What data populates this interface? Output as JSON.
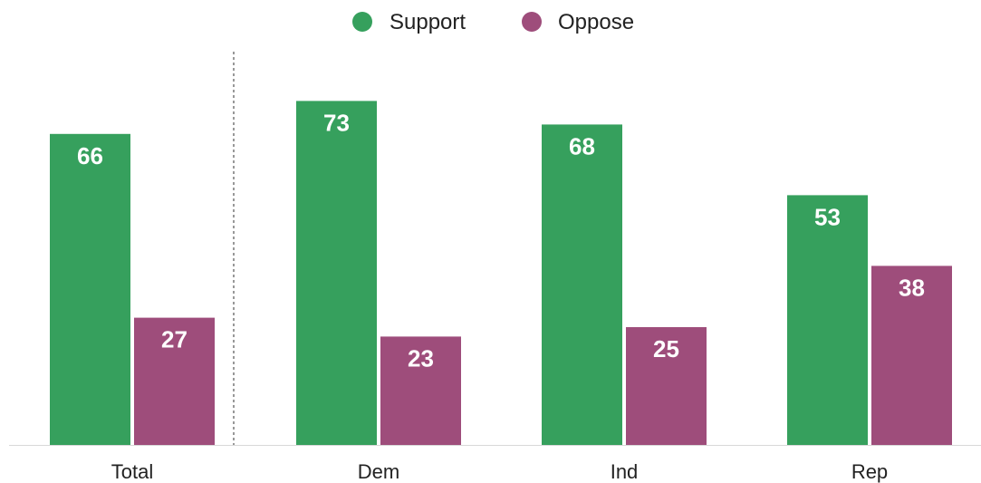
{
  "chart_data": {
    "type": "bar",
    "categories": [
      "Total",
      "Dem",
      "Ind",
      "Rep"
    ],
    "series": [
      {
        "name": "Support",
        "color": "#36a05d",
        "values": [
          66,
          73,
          68,
          53
        ]
      },
      {
        "name": "Oppose",
        "color": "#9e4d7b",
        "values": [
          27,
          23,
          25,
          38
        ]
      }
    ],
    "title": "",
    "xlabel": "",
    "ylabel": "",
    "ylim": [
      0,
      84
    ],
    "grid": false,
    "legend_position": "top-center",
    "separator_after_category": "Total",
    "data_labels": true
  }
}
